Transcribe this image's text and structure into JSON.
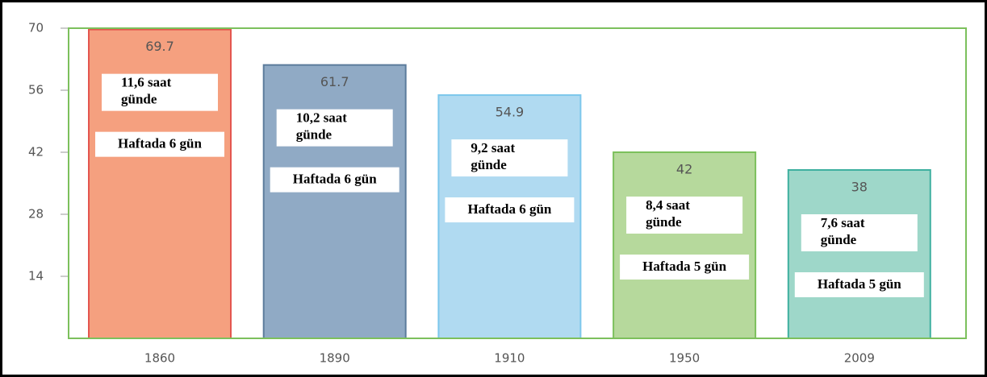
{
  "chart_data": {
    "type": "bar",
    "categories": [
      "1860",
      "1890",
      "1910",
      "1950",
      "2009"
    ],
    "values": [
      69.7,
      61.7,
      54.9,
      42,
      38
    ],
    "colors": [
      "#f5a07f",
      "#90aac5",
      "#b0daf1",
      "#b6d99c",
      "#9ed7c9"
    ],
    "edge_colors": [
      "#e4564f",
      "#5c7c9c",
      "#7dc7ec",
      "#7cc05c",
      "#3fb0a0"
    ],
    "frame_color": "#7cc05c",
    "ylim": [
      0,
      70
    ],
    "yticks": [
      14,
      28,
      42,
      56,
      70
    ],
    "notes": [
      {
        "daily": [
          "11,6 saat",
          "günde"
        ],
        "weekly": "Haftada 6 gün"
      },
      {
        "daily": [
          "10,2 saat",
          "günde"
        ],
        "weekly": "Haftada 6 gün"
      },
      {
        "daily": [
          "9,2 saat",
          "günde"
        ],
        "weekly": "Haftada 6 gün"
      },
      {
        "daily": [
          "8,4 saat",
          "günde"
        ],
        "weekly": "Haftada 5 gün"
      },
      {
        "daily": [
          "7,6 saat",
          "günde"
        ],
        "weekly": "Haftada 5 gün"
      }
    ]
  }
}
